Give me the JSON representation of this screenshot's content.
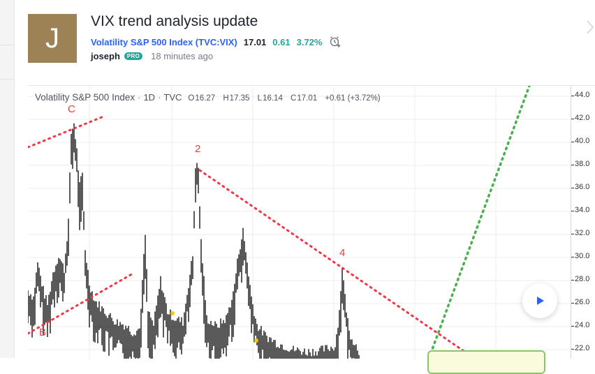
{
  "idea": {
    "avatar_letter": "J",
    "title": "VIX trend analysis update",
    "symbol_link": "Volatility S&P 500 Index (TVC:VIX)",
    "price": "17.01",
    "change": "0.61",
    "change_percent": "3.72%",
    "author": "joseph",
    "badge": "PRO",
    "time_ago": "18 minutes ago"
  },
  "chart": {
    "legend": {
      "symbol": "Volatility S&P 500 Index",
      "separator": "·",
      "interval": "1D",
      "source": "TVC",
      "open_key": "O",
      "open": "16.27",
      "high_key": "H",
      "high": "17.35",
      "low_key": "L",
      "low": "16.14",
      "close_key": "C",
      "close": "17.01",
      "change": "+0.61 (+3.72%)"
    },
    "wave_labels": {
      "c": "C",
      "two": "2",
      "four": "4",
      "b": "B"
    },
    "price_ticks": [
      "44.0",
      "42.0",
      "40.0",
      "38.0",
      "36.0",
      "34.0",
      "32.0",
      "30.0",
      "28.0",
      "26.0",
      "24.0",
      "22.0"
    ],
    "colors": {
      "bars": "#000000",
      "red_trendline": "#f23645",
      "green_trendline": "#4caf50",
      "grid": "#e9ecf2",
      "markers": "#f5c518",
      "accent": "#2962ff"
    },
    "icons": {
      "alarm": "alarm-clock-plus-icon",
      "play": "play-icon",
      "next": "chevron-right-icon"
    }
  }
}
